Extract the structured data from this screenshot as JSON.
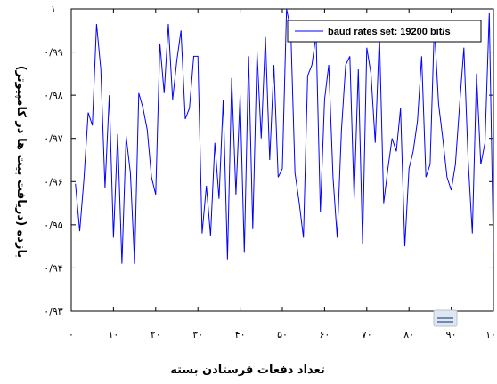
{
  "chart_data": {
    "type": "line",
    "title": "",
    "xlabel": "تعداد دفعات فرستادن بسته",
    "ylabel": "بازده (دریافت بیت ها در کامپیوتر)",
    "xlim": [
      0,
      100
    ],
    "ylim": [
      0.93,
      1.0
    ],
    "x_ticks": [
      0,
      10,
      20,
      30,
      40,
      50,
      60,
      70,
      80,
      90,
      100
    ],
    "x_tick_labels": [
      "۰",
      "۱۰",
      "۲۰",
      "۳۰",
      "۴۰",
      "۵۰",
      "۶۰",
      "۷۰",
      "۸۰",
      "۹۰",
      "۱۰۰"
    ],
    "y_ticks": [
      0.93,
      0.94,
      0.95,
      0.96,
      0.97,
      0.98,
      0.99,
      1.0
    ],
    "y_tick_labels": [
      "۰/۹۳",
      "۰/۹۴",
      "۰/۹۵",
      "۰/۹۶",
      "۰/۹۷",
      "۰/۹۸",
      "۰/۹۹",
      "۱"
    ],
    "grid": false,
    "legend_position": "top-right",
    "series": [
      {
        "name": "baud rates set: 19200 bit/s",
        "color": "#0000ff",
        "x": [
          1,
          2,
          3,
          4,
          5,
          6,
          7,
          8,
          9,
          10,
          11,
          12,
          13,
          14,
          15,
          16,
          17,
          18,
          19,
          20,
          21,
          22,
          23,
          24,
          25,
          26,
          27,
          28,
          29,
          30,
          31,
          32,
          33,
          34,
          35,
          36,
          37,
          38,
          39,
          40,
          41,
          42,
          43,
          44,
          45,
          46,
          47,
          48,
          49,
          50,
          51,
          52,
          53,
          54,
          55,
          56,
          57,
          58,
          59,
          60,
          61,
          62,
          63,
          64,
          65,
          66,
          67,
          68,
          69,
          70,
          71,
          72,
          73,
          74,
          75,
          76,
          77,
          78,
          79,
          80,
          81,
          82,
          83,
          84,
          85,
          86,
          87,
          88,
          89,
          90,
          91,
          92,
          93,
          94,
          95,
          96,
          97,
          98,
          99,
          100
        ],
        "values": [
          0.9595,
          0.9485,
          0.9605,
          0.976,
          0.973,
          0.9965,
          0.986,
          0.9585,
          0.98,
          0.947,
          0.971,
          0.941,
          0.9705,
          0.962,
          0.941,
          0.9805,
          0.977,
          0.972,
          0.961,
          0.957,
          0.992,
          0.9805,
          0.9965,
          0.979,
          0.988,
          0.995,
          0.9745,
          0.977,
          0.989,
          0.989,
          0.948,
          0.959,
          0.9475,
          0.969,
          0.956,
          0.979,
          0.942,
          0.984,
          0.957,
          0.98,
          0.9435,
          0.989,
          0.949,
          0.99,
          0.97,
          0.9935,
          0.965,
          0.987,
          0.961,
          0.963,
          1.0,
          0.995,
          0.962,
          0.955,
          0.947,
          0.9845,
          0.987,
          0.994,
          0.953,
          0.979,
          0.987,
          0.961,
          0.947,
          0.972,
          0.987,
          0.989,
          0.956,
          0.986,
          0.9455,
          0.991,
          0.985,
          0.969,
          0.994,
          0.955,
          0.963,
          0.97,
          0.967,
          0.977,
          0.945,
          0.963,
          0.967,
          0.974,
          0.989,
          0.961,
          0.964,
          0.996,
          0.978,
          0.97,
          0.961,
          0.958,
          0.964,
          0.978,
          0.991,
          0.965,
          0.948,
          0.985,
          0.964,
          0.969,
          0.999,
          0.944
        ]
      }
    ]
  }
}
